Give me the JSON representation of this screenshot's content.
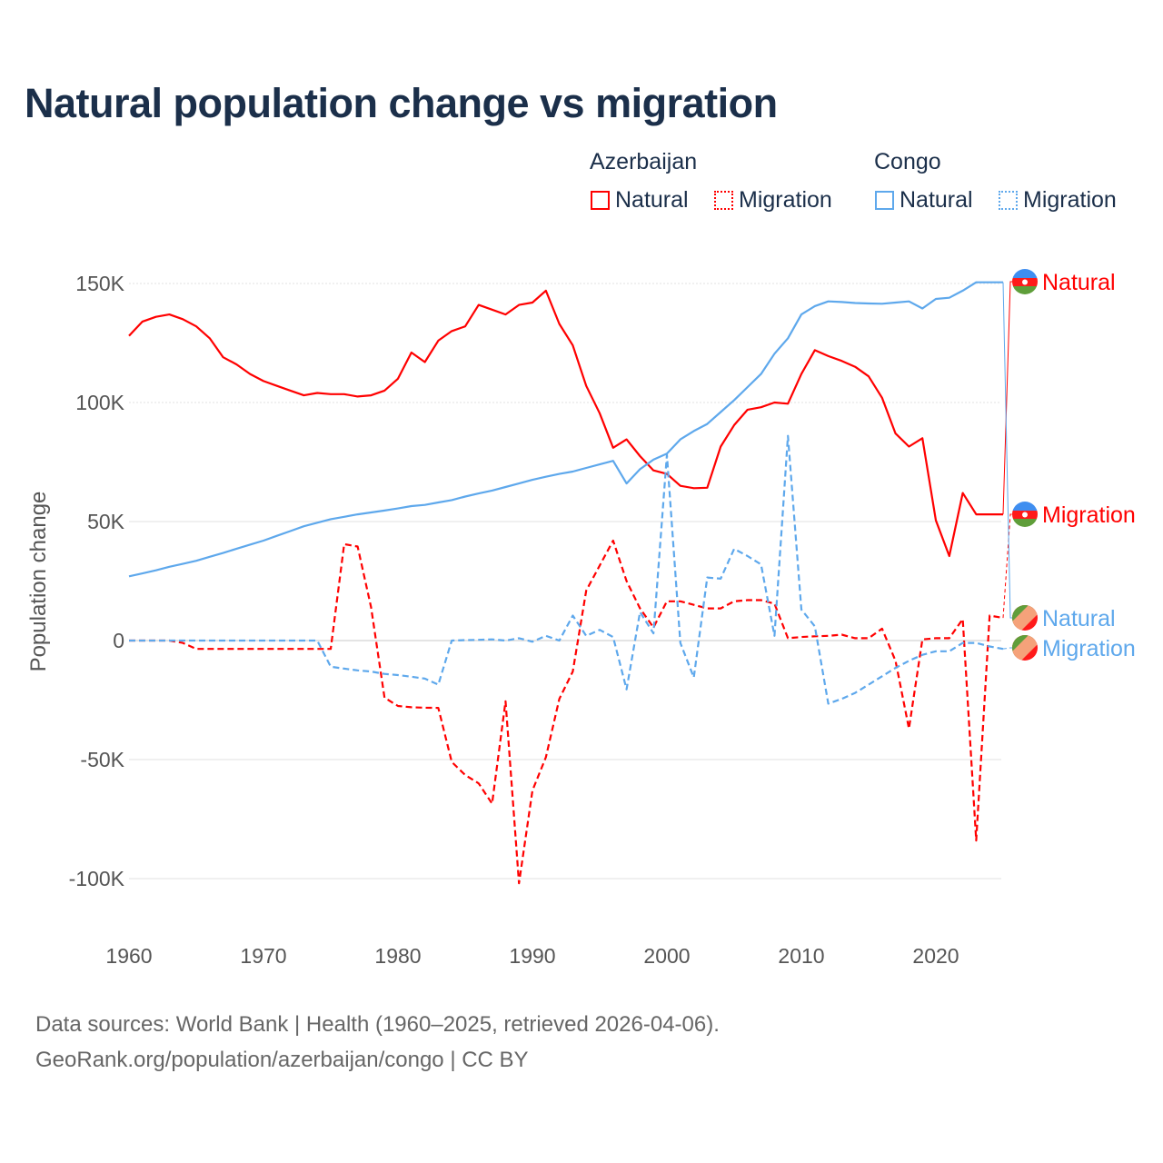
{
  "chart_data": {
    "type": "line",
    "title": "Natural population change vs migration",
    "xlabel": "",
    "ylabel": "Population change",
    "xlim": [
      1960,
      2025
    ],
    "ylim": [
      -110000,
      160000
    ],
    "x_ticks": [
      1960,
      1970,
      1980,
      1990,
      2000,
      2010,
      2020
    ],
    "x_tick_labels": [
      "1960",
      "1970",
      "1980",
      "1990",
      "2000",
      "2010",
      "2020"
    ],
    "y_ticks": [
      150000,
      100000,
      50000,
      0,
      -50000,
      -100000
    ],
    "y_tick_labels": [
      "150K",
      "100K",
      "50K",
      "0",
      "-50K",
      "-100K"
    ],
    "grid": true,
    "legend": {
      "placement": "top-right",
      "groups": [
        {
          "name": "Azerbaijan",
          "items": [
            "Natural",
            "Migration"
          ]
        },
        {
          "name": "Congo",
          "items": [
            "Natural",
            "Migration"
          ]
        }
      ]
    },
    "x": [
      1960,
      1961,
      1962,
      1963,
      1964,
      1965,
      1966,
      1967,
      1968,
      1969,
      1970,
      1971,
      1972,
      1973,
      1974,
      1975,
      1976,
      1977,
      1978,
      1979,
      1980,
      1981,
      1982,
      1983,
      1984,
      1985,
      1986,
      1987,
      1988,
      1989,
      1990,
      1991,
      1992,
      1993,
      1994,
      1995,
      1996,
      1997,
      1998,
      1999,
      2000,
      2001,
      2002,
      2003,
      2004,
      2005,
      2006,
      2007,
      2008,
      2009,
      2010,
      2011,
      2012,
      2013,
      2014,
      2015,
      2016,
      2017,
      2018,
      2019,
      2020,
      2021,
      2022,
      2023,
      2024,
      2025
    ],
    "series": [
      {
        "name": "Natural",
        "country": "Azerbaijan",
        "color": "#ff0000",
        "dash": "solid",
        "end_label": "Natural",
        "values": [
          128,
          134,
          136,
          137,
          135,
          132,
          127,
          119,
          116,
          112,
          109,
          107,
          105,
          103,
          104,
          103.5,
          103.5,
          102.5,
          103,
          105,
          110,
          121,
          117,
          126,
          130,
          132,
          141,
          139,
          137,
          141,
          142,
          147,
          133,
          124,
          107,
          95.5,
          81,
          84.5,
          77.5,
          71.5,
          70,
          65,
          64,
          64.2,
          81.5,
          90.5,
          97,
          98,
          100,
          99.5,
          112,
          122,
          119.5,
          117.5,
          115,
          111,
          102,
          87,
          81.5,
          85,
          50.5,
          35.5,
          62,
          53,
          53,
          53
        ]
      },
      {
        "name": "Migration",
        "country": "Azerbaijan",
        "color": "#ff0000",
        "dash": "dashed",
        "end_label": "Migration",
        "values": [
          0,
          0,
          0,
          0,
          -1,
          -3.5,
          -3.5,
          -3.5,
          -3.5,
          -3.5,
          -3.5,
          -3.5,
          -3.5,
          -3.5,
          -3.5,
          -3.5,
          40.5,
          39.5,
          14,
          -24,
          -27.5,
          -28,
          -28.2,
          -28.3,
          -51,
          -56.5,
          -60,
          -68.5,
          -25.5,
          -102,
          -63,
          -49,
          -24.5,
          -13,
          21,
          31.5,
          42,
          25,
          13.5,
          5.5,
          16.5,
          16.5,
          15,
          13.5,
          13.5,
          16.5,
          17,
          17,
          15.5,
          1,
          1.5,
          1.8,
          2,
          2.5,
          1,
          1,
          5,
          -8.5,
          -37,
          0.5,
          1,
          1,
          9,
          -84,
          10.5,
          9.5
        ]
      },
      {
        "name": "Natural",
        "country": "Congo",
        "color": "#5ea8ec",
        "dash": "solid",
        "end_label": "Natural",
        "values": [
          27,
          28.2,
          29.5,
          31,
          32.2,
          33.5,
          35.2,
          36.8,
          38.6,
          40.3,
          42,
          44,
          46,
          48,
          49.5,
          51,
          52,
          53,
          53.8,
          54.6,
          55.5,
          56.5,
          57,
          58,
          59,
          60.5,
          61.8,
          63,
          64.5,
          66,
          67.5,
          68.8,
          70,
          71,
          72.5,
          74,
          75.5,
          66,
          72,
          76,
          78.5,
          84.5,
          88,
          91,
          96,
          101,
          106.5,
          112,
          120.5,
          127,
          137,
          140.5,
          142.5,
          142.2,
          141.8,
          141.6,
          141.5,
          142,
          142.5,
          139.5,
          143.5,
          144,
          147,
          150.5,
          150.5,
          150.5
        ]
      },
      {
        "name": "Migration",
        "country": "Congo",
        "color": "#5ea8ec",
        "dash": "dashed",
        "end_label": "Migration",
        "values": [
          0,
          0,
          0,
          0,
          0,
          0,
          0,
          0,
          0,
          0,
          0,
          0,
          0,
          0,
          0,
          -11,
          -11.8,
          -12.5,
          -13,
          -14,
          -14.5,
          -15.2,
          -16,
          -18.5,
          0,
          0.2,
          0.3,
          0.5,
          0,
          1,
          -0.5,
          2,
          0,
          10.5,
          2,
          4.5,
          1.5,
          -20.5,
          12,
          3,
          78,
          -1,
          -15.5,
          26.5,
          26,
          38.5,
          35.5,
          32,
          2,
          86,
          13,
          6,
          -26.5,
          -24.5,
          -22,
          -18.5,
          -15,
          -11.5,
          -8.5,
          -6,
          -4.5,
          -4.5,
          -1,
          -1,
          -2.5,
          -3.5
        ]
      }
    ],
    "value_unit": "thousands"
  },
  "colors": {
    "azerbaijan": "#ff0000",
    "congo": "#5ea8ec",
    "title": "#1b2f4a"
  },
  "footer": {
    "line1": "Data sources: World Bank | Health (1960–2025, retrieved 2026-04-06).",
    "line2": "GeoRank.org/population/azerbaijan/congo | CC BY"
  }
}
